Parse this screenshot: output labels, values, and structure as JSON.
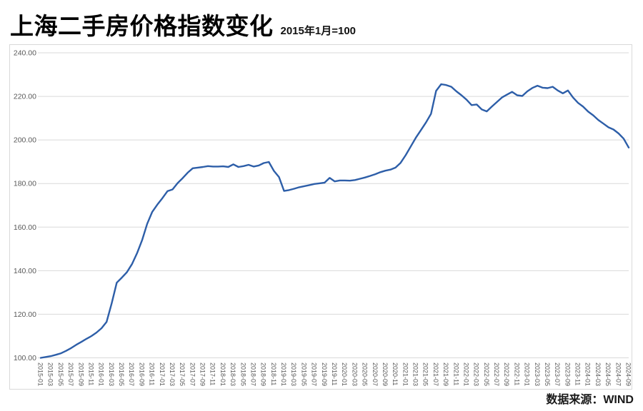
{
  "header": {
    "title": "上海二手房价格指数变化",
    "subtitle": "2015年1月=100"
  },
  "footer": {
    "source": "数据来源：WIND"
  },
  "colors": {
    "line": "#2D5EA8",
    "grid": "#D9D9D9",
    "frame": "#D9D9D9",
    "tick_text": "#595959"
  },
  "chart_data": {
    "type": "line",
    "title": "上海二手房价格指数变化",
    "subtitle": "2015年1月=100",
    "source": "数据来源：WIND",
    "legend": null,
    "grid": "horizontal",
    "ylim": [
      100,
      240
    ],
    "y_ticks": [
      240,
      220,
      200,
      180,
      160,
      140,
      120,
      100
    ],
    "y_tick_labels": [
      "240.00",
      "220.00",
      "200.00",
      "180.00",
      "160.00",
      "140.00",
      "120.00",
      "100.00"
    ],
    "x_tick_every": 2,
    "x": [
      "2015-01",
      "2015-02",
      "2015-03",
      "2015-04",
      "2015-05",
      "2015-06",
      "2015-07",
      "2015-08",
      "2015-09",
      "2015-10",
      "2015-11",
      "2015-12",
      "2016-01",
      "2016-02",
      "2016-03",
      "2016-04",
      "2016-05",
      "2016-06",
      "2016-07",
      "2016-08",
      "2016-09",
      "2016-10",
      "2016-11",
      "2016-12",
      "2017-01",
      "2017-02",
      "2017-03",
      "2017-04",
      "2017-05",
      "2017-06",
      "2017-07",
      "2017-08",
      "2017-09",
      "2017-10",
      "2017-11",
      "2017-12",
      "2018-01",
      "2018-02",
      "2018-03",
      "2018-04",
      "2018-05",
      "2018-06",
      "2018-07",
      "2018-08",
      "2018-09",
      "2018-10",
      "2018-11",
      "2018-12",
      "2019-01",
      "2019-02",
      "2019-03",
      "2019-04",
      "2019-05",
      "2019-06",
      "2019-07",
      "2019-08",
      "2019-09",
      "2019-10",
      "2019-11",
      "2019-12",
      "2020-01",
      "2020-02",
      "2020-03",
      "2020-04",
      "2020-05",
      "2020-06",
      "2020-07",
      "2020-08",
      "2020-09",
      "2020-10",
      "2020-11",
      "2020-12",
      "2021-01",
      "2021-02",
      "2021-03",
      "2021-04",
      "2021-05",
      "2021-06",
      "2021-07",
      "2021-08",
      "2021-09",
      "2021-10",
      "2021-11",
      "2021-12",
      "2022-01",
      "2022-02",
      "2022-03",
      "2022-04",
      "2022-05",
      "2022-06",
      "2022-07",
      "2022-08",
      "2022-09",
      "2022-10",
      "2022-11",
      "2022-12",
      "2023-01",
      "2023-02",
      "2023-03",
      "2023-04",
      "2023-05",
      "2023-06",
      "2023-07",
      "2023-08",
      "2023-09",
      "2023-10",
      "2023-11",
      "2023-12",
      "2024-01",
      "2024-02",
      "2024-03",
      "2024-04",
      "2024-05",
      "2024-06",
      "2024-07",
      "2024-08",
      "2024-09"
    ],
    "values": [
      100.0,
      100.4,
      100.8,
      101.4,
      102.1,
      103.2,
      104.5,
      106.0,
      107.3,
      108.7,
      110.0,
      111.6,
      113.6,
      116.5,
      125.0,
      134.5,
      136.8,
      139.3,
      143.0,
      148.0,
      154.0,
      161.5,
      167.0,
      170.3,
      173.3,
      176.5,
      177.3,
      180.2,
      182.5,
      185.0,
      187.0,
      187.3,
      187.6,
      188.0,
      187.8,
      187.8,
      187.9,
      187.6,
      188.8,
      187.6,
      188.0,
      188.6,
      187.8,
      188.3,
      189.4,
      189.9,
      185.8,
      183.0,
      176.6,
      177.0,
      177.6,
      178.3,
      178.8,
      179.3,
      179.8,
      180.1,
      180.4,
      182.6,
      181.0,
      181.4,
      181.4,
      181.3,
      181.6,
      182.2,
      182.8,
      183.5,
      184.3,
      185.2,
      185.9,
      186.4,
      187.3,
      189.5,
      193.0,
      197.0,
      201.0,
      204.5,
      208.0,
      212.0,
      222.5,
      225.6,
      225.2,
      224.4,
      222.3,
      220.5,
      218.5,
      216.0,
      216.3,
      214.0,
      213.1,
      215.3,
      217.4,
      219.5,
      220.8,
      222.1,
      220.5,
      220.2,
      222.3,
      223.9,
      224.9,
      224.0,
      223.8,
      224.4,
      222.7,
      221.4,
      222.7,
      219.5,
      217.0,
      215.3,
      213.0,
      211.3,
      209.2,
      207.5,
      205.8,
      204.8,
      203.0,
      200.6,
      196.5
    ]
  }
}
